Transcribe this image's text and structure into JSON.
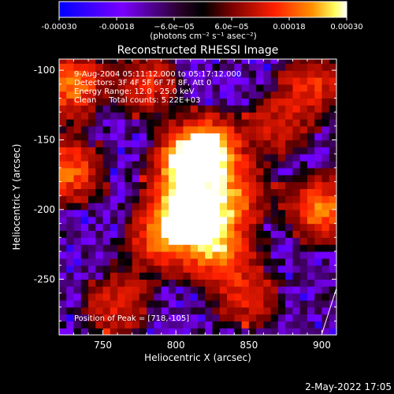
{
  "chart_data": {
    "type": "heatmap",
    "title": "Reconstructed RHESSI Image",
    "xlabel": "Heliocentric X (arcsec)",
    "ylabel": "Heliocentric Y (arcsec)",
    "xlim": [
      720,
      910
    ],
    "ylim": [
      -290,
      -92
    ],
    "x_ticks": [
      750,
      800,
      850,
      900
    ],
    "y_ticks": [
      -100,
      -150,
      -200,
      -250
    ],
    "colorbar": {
      "min": -0.0003,
      "max": 0.0003,
      "tick_values": [
        -0.0003,
        -0.00018,
        -6e-05,
        6e-05,
        0.00018,
        0.0003
      ],
      "tick_labels": [
        "-0.00030",
        "-0.00018",
        "−6.0e−05",
        "6.0e−05",
        "0.00018",
        "0.00030"
      ],
      "units": "(photons cm⁻² s⁻¹ asec⁻²)",
      "colors": [
        "#0000ff",
        "#7a00ff",
        "#2a002a",
        "#000000",
        "#7a0000",
        "#ff2000",
        "#ff9000",
        "#ffff60",
        "#ffffff"
      ]
    },
    "info_lines": [
      "9-Aug-2004 05:11:12.000 to 05:17:12.000",
      "Detectors: 3F 4F 5F 6F 7F 8F, Att 0",
      "Energy Range: 12.0 - 25.0 keV",
      "Clean     Total counts: 5.22E+03"
    ],
    "peak_label": "Position of Peak = [718,-105]",
    "sources": [
      {
        "x": 822,
        "y": -158,
        "intensity": 1.0
      },
      {
        "x": 808,
        "y": -168,
        "intensity": 0.85
      },
      {
        "x": 805,
        "y": -200,
        "intensity": 0.9
      },
      {
        "x": 820,
        "y": -210,
        "intensity": 0.7
      },
      {
        "x": 830,
        "y": -232,
        "intensity": 0.55
      },
      {
        "x": 790,
        "y": -222,
        "intensity": 0.5
      },
      {
        "x": 840,
        "y": -190,
        "intensity": 0.5
      },
      {
        "x": 728,
        "y": -110,
        "intensity": 0.6
      },
      {
        "x": 726,
        "y": -172,
        "intensity": 0.55
      },
      {
        "x": 780,
        "y": -110,
        "intensity": 0.35
      },
      {
        "x": 900,
        "y": -200,
        "intensity": 0.6
      },
      {
        "x": 893,
        "y": -110,
        "intensity": 0.4
      },
      {
        "x": 760,
        "y": -268,
        "intensity": 0.35
      },
      {
        "x": 850,
        "y": -262,
        "intensity": 0.35
      },
      {
        "x": 870,
        "y": -140,
        "intensity": 0.3
      }
    ]
  },
  "footer_date": "2-May-2022 17:05"
}
